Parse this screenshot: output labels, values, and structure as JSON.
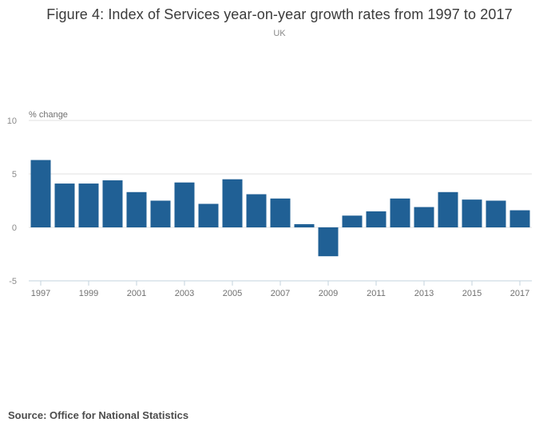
{
  "header": {
    "title": "Figure 4: Index of Services year-on-year growth rates from 1997 to 2017",
    "subtitle": "UK"
  },
  "chart_data": {
    "type": "bar",
    "title": "Figure 4: Index of Services year-on-year growth rates from 1997 to 2017",
    "subtitle": "UK",
    "categories": [
      "1997",
      "1998",
      "1999",
      "2000",
      "2001",
      "2002",
      "2003",
      "2004",
      "2005",
      "2006",
      "2007",
      "2008",
      "2009",
      "2010",
      "2011",
      "2012",
      "2013",
      "2014",
      "2015",
      "2016",
      "2017"
    ],
    "values": [
      6.3,
      4.1,
      4.1,
      4.4,
      3.3,
      2.5,
      4.2,
      2.2,
      4.5,
      3.1,
      2.7,
      0.3,
      -2.7,
      1.1,
      1.5,
      2.7,
      1.9,
      3.3,
      2.6,
      2.5,
      1.6
    ],
    "xlabel": "",
    "ylabel": "% change",
    "yticks": [
      10,
      5,
      0,
      -5
    ],
    "ylim": [
      -5,
      10
    ],
    "xtick_labels": [
      "1997",
      "1999",
      "2001",
      "2003",
      "2005",
      "2007",
      "2009",
      "2011",
      "2013",
      "2015",
      "2017"
    ],
    "grid": "horizontal",
    "legend": "none",
    "colors": {
      "bar": "#206095",
      "gridline": "#e2e2e2",
      "axis_line": "#c3d3de",
      "tick_text": "#707070",
      "y_tick_text": "#8a8a8a",
      "title_text": "#3b3b3b",
      "subtitle_text": "#8a8a8a",
      "source_text": "#4c4c4c"
    }
  },
  "footer": {
    "source": "Source: Office for National Statistics"
  }
}
